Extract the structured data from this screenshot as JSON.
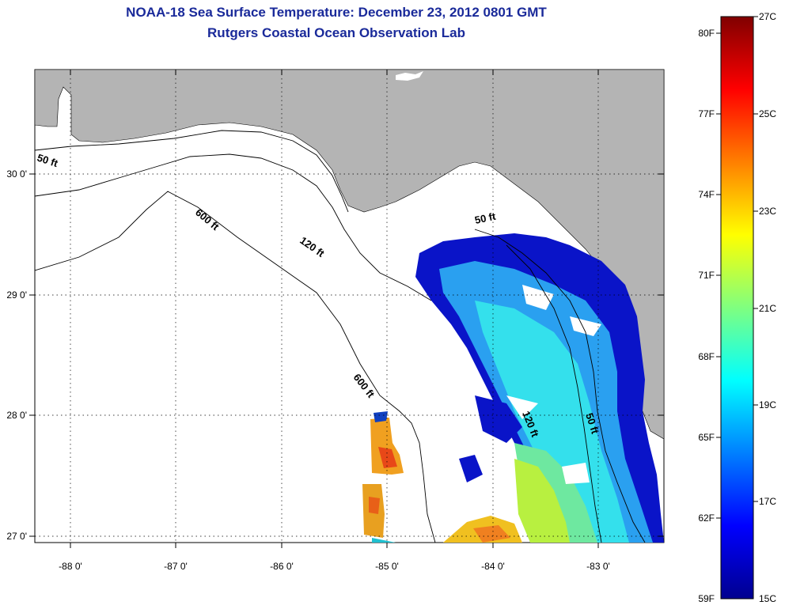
{
  "header": {
    "title": "NOAA-18 Sea Surface Temperature:  December 23, 2012 0801 GMT",
    "subtitle": "Rutgers Coastal Ocean Observation Lab"
  },
  "map": {
    "lon_ticks": [
      "-88 0'",
      "-87 0'",
      "-86 0'",
      "-85 0'",
      "-84 0'",
      "-83 0'"
    ],
    "lat_ticks": [
      "30 0'",
      "29 0'",
      "28 0'",
      "27 0'"
    ],
    "lon_range": [
      -88.3,
      -82.4
    ],
    "lat_range": [
      26.95,
      30.85
    ],
    "land_color": "#b4b4b4",
    "water_color": "#ffffff",
    "grid": "dotted",
    "contours": [
      {
        "label": "50 ft"
      },
      {
        "label": "120 ft"
      },
      {
        "label": "600 ft"
      },
      {
        "label": "600 ft"
      },
      {
        "label": "50 ft"
      },
      {
        "label": "120 ft"
      },
      {
        "label": "50 ft"
      }
    ]
  },
  "colorbar": {
    "fahrenheit_labels": [
      "80F",
      "77F",
      "74F",
      "71F",
      "68F",
      "65F",
      "62F",
      "59F"
    ],
    "celsius_labels": [
      "27C",
      "25C",
      "23C",
      "21C",
      "19C",
      "17C",
      "15C"
    ],
    "min_c": 15,
    "max_c": 27,
    "colormap": "jet"
  }
}
